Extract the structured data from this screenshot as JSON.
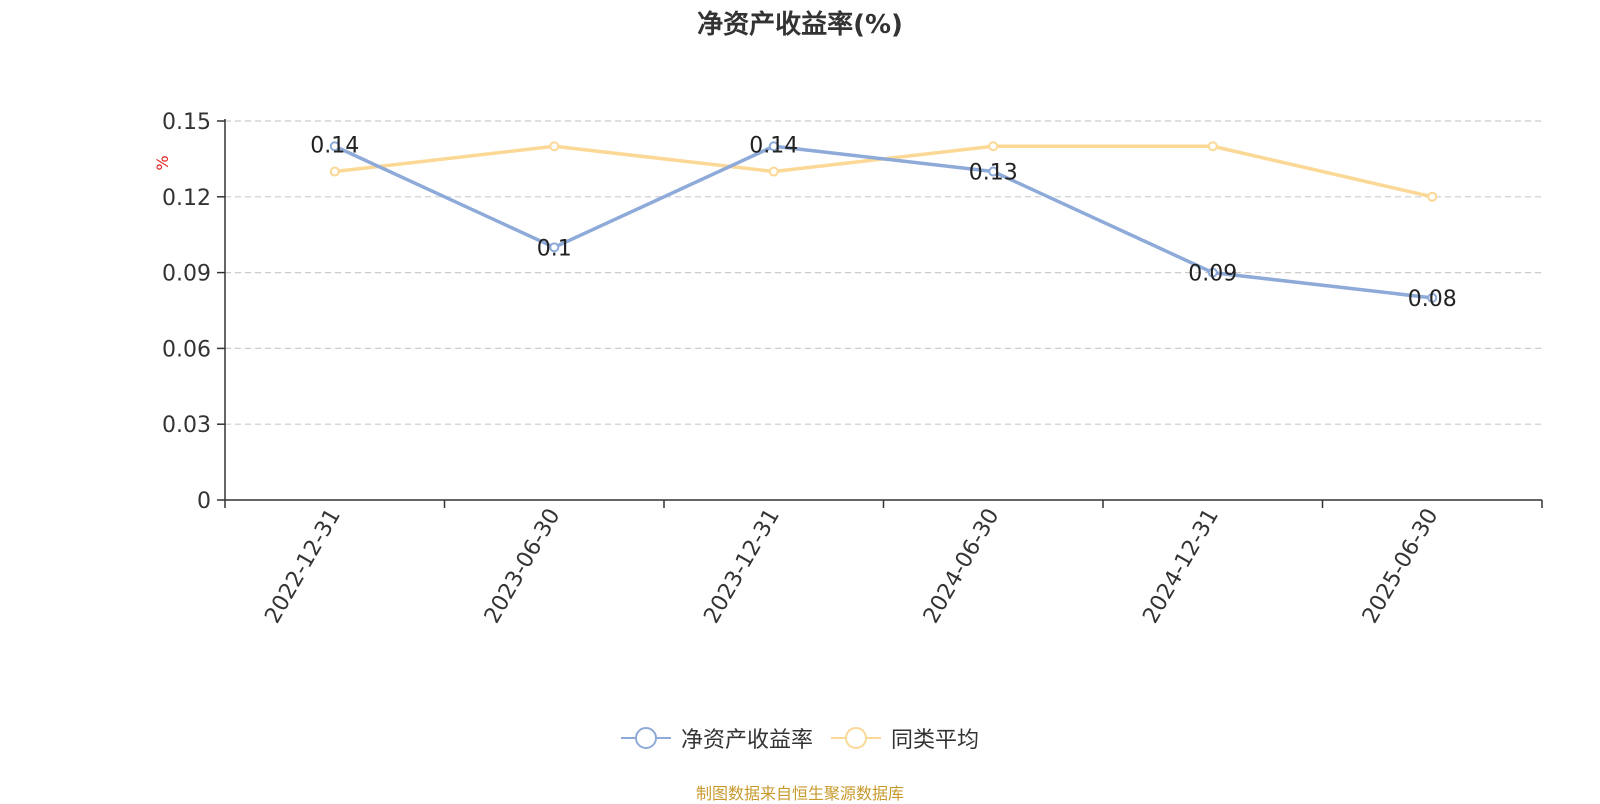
{
  "chart_data": {
    "type": "line",
    "title": "净资产收益率(%)",
    "ylabel": "%",
    "xlabel": "",
    "categories": [
      "2022-12-31",
      "2023-06-30",
      "2023-12-31",
      "2024-06-30",
      "2024-12-31",
      "2025-06-30"
    ],
    "ylim": [
      0,
      0.15
    ],
    "yticks": [
      "0",
      "0.03",
      "0.06",
      "0.09",
      "0.12",
      "0.15"
    ],
    "grid": true,
    "legend_position": "bottom",
    "series": [
      {
        "name": "净资产收益率",
        "color": "#8eaad8",
        "values": [
          0.14,
          0.1,
          0.14,
          0.13,
          0.09,
          0.08
        ],
        "labels": [
          "0.14",
          "0.1",
          "0.14",
          "0.13",
          "0.09",
          "0.08"
        ]
      },
      {
        "name": "同类平均",
        "color": "#fbd895",
        "values": [
          0.13,
          0.14,
          0.13,
          0.14,
          0.14,
          0.12
        ]
      }
    ],
    "source_note": "制图数据来自恒生聚源数据库"
  }
}
